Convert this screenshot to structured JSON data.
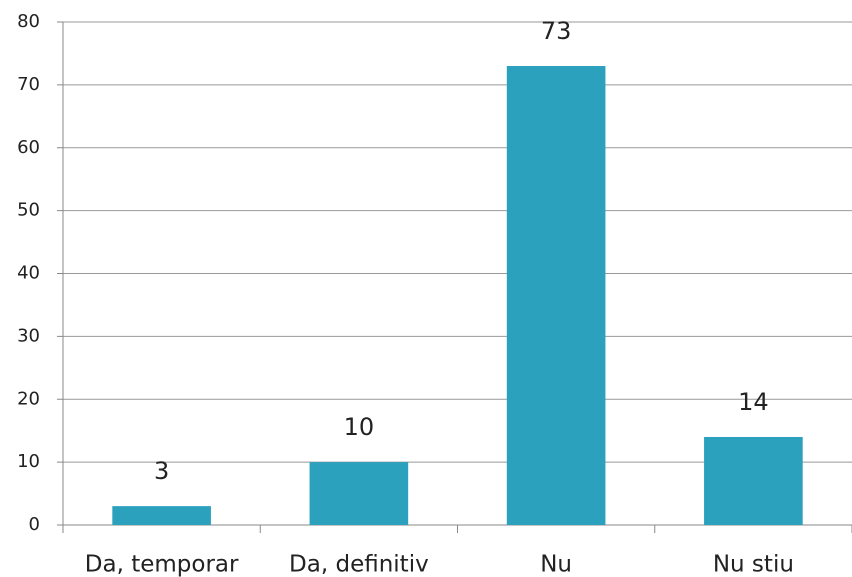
{
  "chart_data": {
    "type": "bar",
    "categories": [
      "Da, temporar",
      "Da, definitiv",
      "Nu",
      "Nu stiu"
    ],
    "values": [
      3,
      10,
      73,
      14
    ],
    "color": "#2ca1bd",
    "ylim": [
      0,
      80
    ],
    "yticks": [
      0,
      10,
      20,
      30,
      40,
      50,
      60,
      70,
      80
    ],
    "grid": true
  }
}
